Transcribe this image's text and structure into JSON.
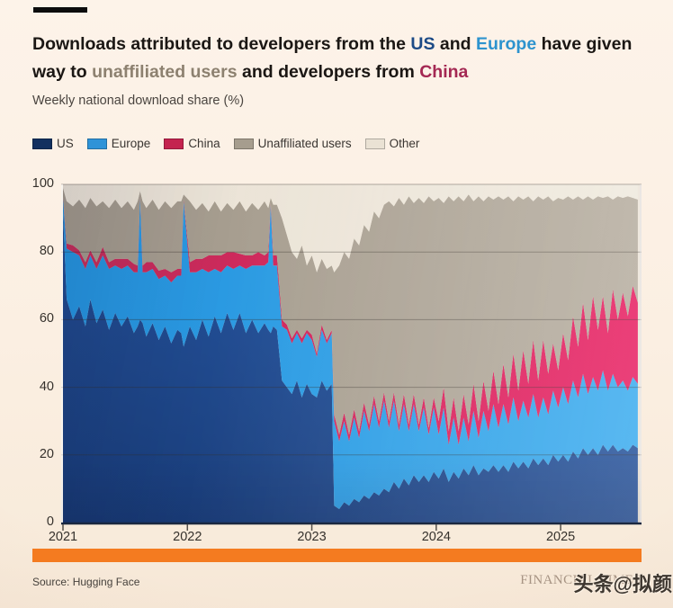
{
  "title": {
    "segments": [
      {
        "t": "Downloads attributed to developers from the "
      },
      {
        "t": "US",
        "c": "us"
      },
      {
        "t": " and "
      },
      {
        "t": "Europe",
        "c": "europe"
      },
      {
        "t": " have given"
      },
      {
        "br": true
      },
      {
        "t": "way to "
      },
      {
        "t": "unaffiliated users",
        "c": "unaffiliated"
      },
      {
        "t": " and developers from "
      },
      {
        "t": "China",
        "c": "china"
      }
    ],
    "accent_colors": {
      "us": "#1c4a86",
      "europe": "#2d93ce",
      "unaffiliated": "#8d8170",
      "china": "#a42853"
    }
  },
  "subtitle": "Weekly national download share (%)",
  "legend": [
    {
      "label": "US",
      "color": "#12305f"
    },
    {
      "label": "Europe",
      "color": "#2e93d8"
    },
    {
      "label": "China",
      "color": "#c4234f"
    },
    {
      "label": "Unaffiliated users",
      "color": "#a69d8e"
    },
    {
      "label": "Other",
      "color": "#eae2d4"
    }
  ],
  "decor": {
    "top_bar_color": "#0c0c0c",
    "highlight_bar_color": "#f47b20"
  },
  "footer": {
    "source": "Source: Hugging Face",
    "brand": "FINANCIAL TIMES",
    "watermark": "头条@拟颜"
  },
  "chart_data": {
    "type": "area",
    "stacked": true,
    "title": "Downloads attributed to developers from the US and Europe have given way to unaffiliated users and developers from China",
    "ylabel": "Weekly national download share (%)",
    "y_range": [
      0,
      100
    ],
    "x_range": [
      2021,
      2025.65
    ],
    "y_ticks": [
      0,
      20,
      40,
      60,
      80,
      100
    ],
    "x_label_ticks": [
      2021,
      2022,
      2023,
      2024,
      2025
    ],
    "grid": true,
    "legend_position": "top",
    "x": [
      2021.0,
      2021.03,
      2021.08,
      2021.13,
      2021.18,
      2021.22,
      2021.27,
      2021.32,
      2021.37,
      2021.42,
      2021.47,
      2021.52,
      2021.57,
      2021.6,
      2021.62,
      2021.64,
      2021.67,
      2021.72,
      2021.77,
      2021.82,
      2021.87,
      2021.92,
      2021.95,
      2021.97,
      2022.02,
      2022.07,
      2022.12,
      2022.17,
      2022.22,
      2022.27,
      2022.32,
      2022.37,
      2022.42,
      2022.47,
      2022.52,
      2022.57,
      2022.62,
      2022.65,
      2022.67,
      2022.69,
      2022.72,
      2022.76,
      2022.8,
      2022.84,
      2022.88,
      2022.92,
      2022.96,
      2023.0,
      2023.04,
      2023.08,
      2023.12,
      2023.16,
      2023.18,
      2023.22,
      2023.26,
      2023.3,
      2023.34,
      2023.38,
      2023.42,
      2023.46,
      2023.5,
      2023.54,
      2023.58,
      2023.62,
      2023.66,
      2023.7,
      2023.74,
      2023.78,
      2023.82,
      2023.86,
      2023.9,
      2023.94,
      2023.98,
      2024.02,
      2024.06,
      2024.1,
      2024.14,
      2024.18,
      2024.22,
      2024.26,
      2024.3,
      2024.34,
      2024.38,
      2024.42,
      2024.46,
      2024.5,
      2024.54,
      2024.58,
      2024.62,
      2024.66,
      2024.7,
      2024.74,
      2024.78,
      2024.82,
      2024.86,
      2024.9,
      2024.94,
      2024.98,
      2025.02,
      2025.06,
      2025.1,
      2025.14,
      2025.18,
      2025.22,
      2025.26,
      2025.3,
      2025.34,
      2025.38,
      2025.42,
      2025.46,
      2025.5,
      2025.54,
      2025.58,
      2025.62
    ],
    "series": [
      {
        "name": "US",
        "fill": [
          "#173a75",
          "#2d61b3"
        ],
        "values": [
          92,
          66,
          60,
          64,
          58,
          66,
          59,
          63,
          57,
          62,
          58,
          61,
          56,
          58,
          60,
          59,
          55,
          59,
          54,
          58,
          53,
          57,
          56,
          52,
          58,
          54,
          60,
          55,
          61,
          56,
          62,
          57,
          62,
          56,
          60,
          56,
          59,
          57,
          56,
          58,
          57,
          42,
          40,
          38,
          42,
          37,
          41,
          38,
          37,
          42,
          39,
          41,
          5,
          4,
          6,
          5,
          7,
          6,
          8,
          7,
          9,
          8,
          10,
          9,
          12,
          10,
          13,
          11,
          14,
          12,
          14,
          12,
          15,
          13,
          16,
          12,
          15,
          13,
          16,
          14,
          17,
          14,
          16,
          15,
          17,
          15,
          17,
          15,
          18,
          16,
          18,
          16,
          19,
          17,
          19,
          17,
          20,
          18,
          20,
          18,
          21,
          19,
          22,
          20,
          22,
          20,
          23,
          21,
          23,
          21,
          22,
          21,
          23,
          22
        ]
      },
      {
        "name": "Europe",
        "fill": [
          "#2493dd",
          "#3aabee"
        ],
        "values": [
          4,
          15,
          20,
          15,
          17,
          13,
          16,
          16,
          18,
          14,
          17,
          15,
          18,
          16,
          36,
          15,
          19,
          16,
          18,
          15,
          18,
          16,
          17,
          43,
          16,
          20,
          15,
          19,
          14,
          18,
          14,
          18,
          14,
          19,
          16,
          20,
          17,
          20,
          38,
          18,
          19,
          16,
          17,
          15,
          14,
          16,
          15,
          16,
          12,
          15,
          14,
          15,
          25,
          20,
          24,
          19,
          24,
          19,
          25,
          20,
          26,
          20,
          26,
          19,
          24,
          17,
          22,
          16,
          21,
          15,
          20,
          14,
          19,
          13,
          18,
          11,
          16,
          10,
          15,
          10,
          16,
          11,
          17,
          12,
          18,
          13,
          18,
          14,
          19,
          14,
          18,
          15,
          19,
          14,
          18,
          15,
          19,
          16,
          20,
          17,
          21,
          18,
          22,
          18,
          21,
          19,
          22,
          18,
          21,
          19,
          20,
          18,
          20,
          19
        ]
      },
      {
        "name": "China",
        "fill": [
          "#c22e59",
          "#e71e61"
        ],
        "values": [
          0.5,
          1.5,
          2,
          1.5,
          2,
          1.5,
          2,
          2.5,
          2,
          2,
          3,
          2,
          2.5,
          2,
          0.5,
          2,
          3,
          2,
          2.5,
          2,
          3,
          2,
          2,
          0.5,
          3,
          4,
          3,
          5,
          4,
          5,
          4,
          5,
          3.5,
          4,
          3,
          4,
          3,
          3,
          0.5,
          3,
          3,
          2,
          1.5,
          1.5,
          1,
          1.5,
          1,
          1.5,
          1,
          1.5,
          1,
          1,
          2,
          2,
          2.5,
          2,
          2.5,
          2,
          2.5,
          2,
          2.5,
          2,
          2.5,
          2,
          2.5,
          2,
          3,
          2,
          3,
          2,
          3,
          2,
          3,
          4,
          6,
          4,
          6,
          4,
          7,
          5,
          8,
          5,
          9,
          6,
          10,
          7,
          12,
          8,
          13,
          9,
          15,
          10,
          16,
          11,
          17,
          12,
          14,
          11,
          16,
          13,
          19,
          15,
          21,
          16,
          24,
          18,
          22,
          17,
          25,
          20,
          26,
          22,
          27,
          24
        ]
      },
      {
        "name": "Unaffiliated users",
        "fill": [
          "#a1988a",
          "#b6ad9f"
        ],
        "values": [
          2.5,
          12.5,
          11.5,
          15,
          16,
          15.5,
          16.5,
          13.5,
          16,
          17.5,
          15,
          17,
          16,
          19,
          1.5,
          19,
          16,
          18.5,
          18,
          20,
          19,
          20,
          20,
          1.5,
          18,
          14.5,
          16.5,
          13,
          16,
          13,
          14.5,
          12.5,
          15.5,
          13,
          15.5,
          12.5,
          16,
          13,
          1.5,
          15,
          15,
          30,
          26.5,
          25.5,
          21,
          27.5,
          19,
          23.5,
          24,
          19.5,
          21,
          19,
          42,
          50,
          47.5,
          52,
          50.5,
          55,
          52.5,
          57,
          54.5,
          60,
          55.5,
          65,
          55,
          67,
          56,
          67.5,
          56.5,
          67,
          57.5,
          68.5,
          58,
          66,
          54.5,
          69.5,
          58,
          69.5,
          57,
          68,
          54,
          66.5,
          53,
          63.5,
          50.5,
          61.5,
          48.5,
          59.5,
          45,
          57.5,
          44.5,
          55.5,
          41,
          54.5,
          41.5,
          52.5,
          42,
          51,
          39.5,
          48.5,
          34.5,
          44.5,
          30.5,
          42.5,
          28.5,
          39.5,
          29,
          40.5,
          26.5,
          36.5,
          28,
          35.5,
          26,
          30.5
        ]
      },
      {
        "name": "Other",
        "fill": [
          "#eae2d5",
          "#efe9dd"
        ],
        "values": [
          1,
          5,
          6.5,
          4.5,
          7,
          4,
          6.5,
          5,
          7,
          4.5,
          7,
          5,
          7.5,
          5,
          2,
          5,
          7,
          4.5,
          7.5,
          5,
          7,
          5,
          5,
          3,
          5,
          7.5,
          5.5,
          8,
          5,
          8,
          5.5,
          7.5,
          5,
          8,
          5.5,
          7.5,
          5,
          7,
          4,
          6,
          6,
          10,
          15,
          20,
          22,
          18,
          24,
          21,
          26,
          22,
          25,
          24,
          26,
          24,
          20,
          22,
          16,
          18,
          12,
          14,
          8,
          10,
          6,
          5,
          6.5,
          4,
          6,
          3.5,
          5.5,
          4,
          5.5,
          3.5,
          5,
          4,
          5.5,
          3.5,
          5,
          3.5,
          5,
          3,
          5,
          3.5,
          5,
          3.5,
          4.5,
          3.5,
          4.5,
          3.5,
          5,
          3.5,
          4.5,
          3.5,
          5,
          3.5,
          4.5,
          3.5,
          5,
          4,
          4.5,
          3.5,
          4.5,
          3.5,
          4.5,
          3.5,
          4.5,
          3.5,
          4,
          3.5,
          4.5,
          3.5,
          4,
          3.5,
          4,
          4.5
        ]
      }
    ]
  }
}
